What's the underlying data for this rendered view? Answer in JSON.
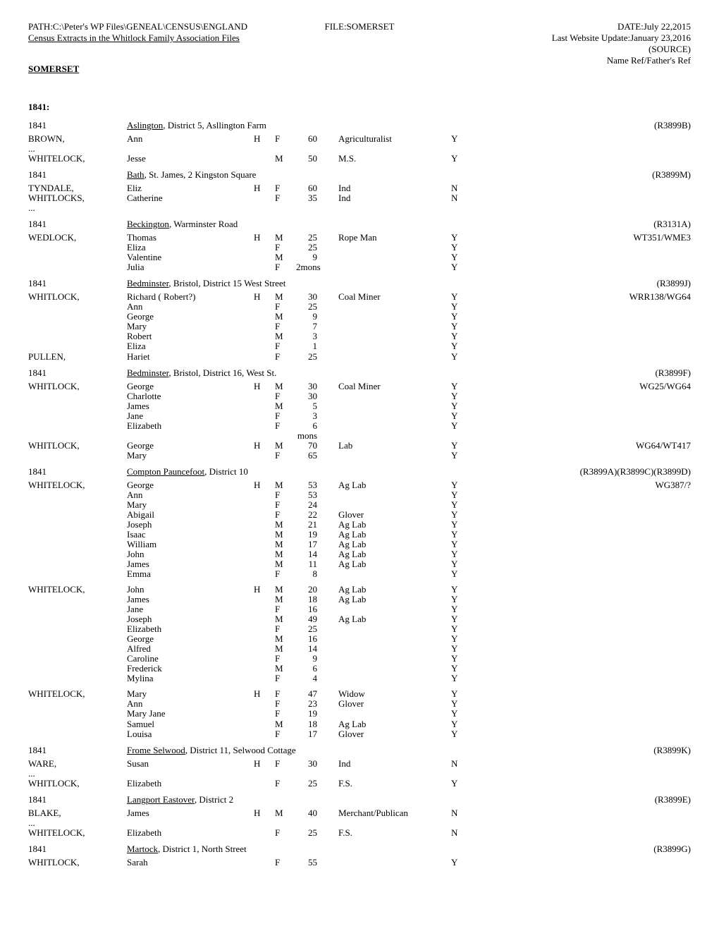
{
  "header": {
    "path": "PATH:C:\\Peter's WP Files\\GENEAL\\CENSUS\\ENGLAND",
    "file": "FILE:SOMERSET",
    "date": "DATE:July 22,2015",
    "update": "Last Website Update:January 23,2016",
    "subtitle": "Census Extracts in the Whitlock Family Association Files",
    "source": "(SOURCE)",
    "sourceRef": "Name Ref/Father's Ref",
    "county": "SOMERSET"
  },
  "yearHeader": "1841:",
  "entries": [
    {
      "type": "loc",
      "year": "1841",
      "place": "Aslington",
      "rest": ", District 5, Asllington Farm",
      "src": "(R3899B)"
    },
    {
      "type": "p",
      "surname": "BROWN,",
      "name": "Ann",
      "h": "H",
      "sex": "F",
      "age": "60",
      "occ": "Agriculturalist",
      "born": "Y",
      "ref": ""
    },
    {
      "type": "ell"
    },
    {
      "type": "p",
      "surname": "WHITELOCK,",
      "name": "Jesse",
      "h": "",
      "sex": "M",
      "age": "50",
      "occ": "M.S.",
      "born": "Y",
      "ref": ""
    },
    {
      "type": "loc",
      "year": "1841",
      "place": "Bath",
      "rest": ", St. James, 2 Kingston Square",
      "src": "(R3899M)"
    },
    {
      "type": "p",
      "surname": "TYNDALE,",
      "name": "Eliz",
      "h": "H",
      "sex": "F",
      "age": "60",
      "occ": "Ind",
      "born": "N",
      "ref": ""
    },
    {
      "type": "p",
      "surname": "WHITLOCKS,",
      "name": "Catherine",
      "h": "",
      "sex": "F",
      "age": "35",
      "occ": "Ind",
      "born": "N",
      "ref": ""
    },
    {
      "type": "ell"
    },
    {
      "type": "loc",
      "year": "1841",
      "place": "Beckington",
      "rest": ", Warminster Road",
      "src": "(R3131A)"
    },
    {
      "type": "p",
      "surname": "WEDLOCK,",
      "name": "Thomas",
      "h": "H",
      "sex": "M",
      "age": "25",
      "occ": "Rope Man",
      "born": "Y",
      "ref": "WT351/WME3"
    },
    {
      "type": "p",
      "surname": "",
      "name": "Eliza",
      "h": "",
      "sex": "F",
      "age": "25",
      "occ": "",
      "born": "Y",
      "ref": ""
    },
    {
      "type": "p",
      "surname": "",
      "name": "Valentine",
      "h": "",
      "sex": "M",
      "age": "9",
      "occ": "",
      "born": "Y",
      "ref": ""
    },
    {
      "type": "p",
      "surname": "",
      "name": "Julia",
      "h": "",
      "sex": "F",
      "age": "2mons",
      "occ": "",
      "born": "Y",
      "ref": ""
    },
    {
      "type": "loc",
      "year": "1841",
      "place": "Bedminster",
      "rest": ", Bristol, District 15 West Street",
      "src": "(R3899J)"
    },
    {
      "type": "p",
      "surname": "WHITLOCK,",
      "name": "Richard ( Robert?)",
      "h": "H",
      "sex": "M",
      "age": "30",
      "occ": "Coal Miner",
      "born": "Y",
      "ref": "WRR138/WG64"
    },
    {
      "type": "p",
      "surname": "",
      "name": "Ann",
      "h": "",
      "sex": "F",
      "age": "25",
      "occ": "",
      "born": "Y",
      "ref": ""
    },
    {
      "type": "p",
      "surname": "",
      "name": "George",
      "h": "",
      "sex": "M",
      "age": "9",
      "occ": "",
      "born": "Y",
      "ref": ""
    },
    {
      "type": "p",
      "surname": "",
      "name": "Mary",
      "h": "",
      "sex": "F",
      "age": "7",
      "occ": "",
      "born": "Y",
      "ref": ""
    },
    {
      "type": "p",
      "surname": "",
      "name": "Robert",
      "h": "",
      "sex": "M",
      "age": "3",
      "occ": "",
      "born": "Y",
      "ref": ""
    },
    {
      "type": "p",
      "surname": "",
      "name": "Eliza",
      "h": "",
      "sex": "F",
      "age": "1",
      "occ": "",
      "born": "Y",
      "ref": ""
    },
    {
      "type": "p",
      "surname": "PULLEN,",
      "name": "Hariet",
      "h": "",
      "sex": "F",
      "age": "25",
      "occ": "",
      "born": "Y",
      "ref": ""
    },
    {
      "type": "loc",
      "year": "1841",
      "place": "Bedminster",
      "rest": ", Bristol, District 16, West St.",
      "src": "(R3899F)"
    },
    {
      "type": "p",
      "surname": "WHITLOCK,",
      "name": "George",
      "h": "H",
      "sex": "M",
      "age": "30",
      "occ": "Coal Miner",
      "born": "Y",
      "ref": "WG25/WG64"
    },
    {
      "type": "p",
      "surname": "",
      "name": "Charlotte",
      "h": "",
      "sex": "F",
      "age": "30",
      "occ": "",
      "born": "Y",
      "ref": ""
    },
    {
      "type": "p",
      "surname": "",
      "name": "James",
      "h": "",
      "sex": "M",
      "age": "5",
      "occ": "",
      "born": "Y",
      "ref": ""
    },
    {
      "type": "p",
      "surname": "",
      "name": "Jane",
      "h": "",
      "sex": "F",
      "age": "3",
      "occ": "",
      "born": "Y",
      "ref": ""
    },
    {
      "type": "p",
      "surname": "",
      "name": "Elizabeth",
      "h": "",
      "sex": "F",
      "age": "6 mons",
      "occ": "",
      "born": "Y",
      "ref": ""
    },
    {
      "type": "p",
      "surname": "WHITLOCK,",
      "name": "George",
      "h": "H",
      "sex": "M",
      "age": "70",
      "occ": "Lab",
      "born": "Y",
      "ref": "WG64/WT417"
    },
    {
      "type": "p",
      "surname": "",
      "name": "Mary",
      "h": "",
      "sex": "F",
      "age": "65",
      "occ": "",
      "born": "Y",
      "ref": ""
    },
    {
      "type": "loc",
      "year": "1841",
      "place": "Compton Pauncefoot",
      "rest": ", District 10",
      "src": "(R3899A)(R3899C)(R3899D)"
    },
    {
      "type": "p",
      "surname": "WHITELOCK,",
      "name": "George",
      "h": "H",
      "sex": "M",
      "age": "53",
      "occ": "Ag Lab",
      "born": "Y",
      "ref": "WG387/?"
    },
    {
      "type": "p",
      "surname": "",
      "name": "Ann",
      "h": "",
      "sex": "F",
      "age": "53",
      "occ": "",
      "born": "Y",
      "ref": ""
    },
    {
      "type": "p",
      "surname": "",
      "name": "Mary",
      "h": "",
      "sex": "F",
      "age": "24",
      "occ": "",
      "born": "Y",
      "ref": ""
    },
    {
      "type": "p",
      "surname": "",
      "name": "Abigail",
      "h": "",
      "sex": "F",
      "age": "22",
      "occ": "Glover",
      "born": "Y",
      "ref": ""
    },
    {
      "type": "p",
      "surname": "",
      "name": "Joseph",
      "h": "",
      "sex": "M",
      "age": "21",
      "occ": "Ag Lab",
      "born": "Y",
      "ref": ""
    },
    {
      "type": "p",
      "surname": "",
      "name": "Isaac",
      "h": "",
      "sex": "M",
      "age": "19",
      "occ": "Ag Lab",
      "born": "Y",
      "ref": ""
    },
    {
      "type": "p",
      "surname": "",
      "name": "William",
      "h": "",
      "sex": "M",
      "age": "17",
      "occ": "Ag Lab",
      "born": "Y",
      "ref": ""
    },
    {
      "type": "p",
      "surname": "",
      "name": "John",
      "h": "",
      "sex": "M",
      "age": "14",
      "occ": "Ag Lab",
      "born": "Y",
      "ref": ""
    },
    {
      "type": "p",
      "surname": "",
      "name": "James",
      "h": "",
      "sex": "M",
      "age": "11",
      "occ": "Ag Lab",
      "born": "Y",
      "ref": ""
    },
    {
      "type": "p",
      "surname": "",
      "name": "Emma",
      "h": "",
      "sex": "F",
      "age": "8",
      "occ": "",
      "born": "Y",
      "ref": ""
    },
    {
      "type": "gap"
    },
    {
      "type": "p",
      "surname": "WHITELOCK,",
      "name": "John",
      "h": "H",
      "sex": "M",
      "age": "20",
      "occ": "Ag Lab",
      "born": "Y",
      "ref": ""
    },
    {
      "type": "p",
      "surname": "",
      "name": "James",
      "h": "",
      "sex": "M",
      "age": "18",
      "occ": "Ag Lab",
      "born": "Y",
      "ref": ""
    },
    {
      "type": "p",
      "surname": "",
      "name": "Jane",
      "h": "",
      "sex": "F",
      "age": "16",
      "occ": "",
      "born": "Y",
      "ref": ""
    },
    {
      "type": "p",
      "surname": "",
      "name": "Joseph",
      "h": "",
      "sex": "M",
      "age": "49",
      "occ": "Ag Lab",
      "born": "Y",
      "ref": ""
    },
    {
      "type": "p",
      "surname": "",
      "name": "Elizabeth",
      "h": "",
      "sex": "F",
      "age": "25",
      "occ": "",
      "born": "Y",
      "ref": ""
    },
    {
      "type": "p",
      "surname": "",
      "name": "George",
      "h": "",
      "sex": "M",
      "age": "16",
      "occ": "",
      "born": "Y",
      "ref": ""
    },
    {
      "type": "p",
      "surname": "",
      "name": "Alfred",
      "h": "",
      "sex": "M",
      "age": "14",
      "occ": "",
      "born": "Y",
      "ref": ""
    },
    {
      "type": "p",
      "surname": "",
      "name": "Caroline",
      "h": "",
      "sex": "F",
      "age": "9",
      "occ": "",
      "born": "Y",
      "ref": ""
    },
    {
      "type": "p",
      "surname": "",
      "name": "Frederick",
      "h": "",
      "sex": "M",
      "age": "6",
      "occ": "",
      "born": "Y",
      "ref": ""
    },
    {
      "type": "p",
      "surname": "",
      "name": "Mylina",
      "h": "",
      "sex": "F",
      "age": "4",
      "occ": "",
      "born": "Y",
      "ref": ""
    },
    {
      "type": "gap"
    },
    {
      "type": "p",
      "surname": "WHITELOCK,",
      "name": "Mary",
      "h": "H",
      "sex": "F",
      "age": "47",
      "occ": "Widow",
      "born": "Y",
      "ref": ""
    },
    {
      "type": "p",
      "surname": "",
      "name": "Ann",
      "h": "",
      "sex": "F",
      "age": "23",
      "occ": "Glover",
      "born": "Y",
      "ref": ""
    },
    {
      "type": "p",
      "surname": "",
      "name": "Mary Jane",
      "h": "",
      "sex": "F",
      "age": "19",
      "occ": "",
      "born": "Y",
      "ref": ""
    },
    {
      "type": "p",
      "surname": "",
      "name": "Samuel",
      "h": "",
      "sex": "M",
      "age": "18",
      "occ": "Ag Lab",
      "born": "Y",
      "ref": ""
    },
    {
      "type": "p",
      "surname": "",
      "name": "Louisa",
      "h": "",
      "sex": "F",
      "age": "17",
      "occ": "Glover",
      "born": "Y",
      "ref": ""
    },
    {
      "type": "loc",
      "year": "1841",
      "place": "Frome Selwood",
      "rest": ", District 11, Selwood Cottage",
      "src": "(R3899K)"
    },
    {
      "type": "p",
      "surname": "WARE,",
      "name": "Susan",
      "h": "H",
      "sex": "F",
      "age": "30",
      "occ": "Ind",
      "born": "N",
      "ref": ""
    },
    {
      "type": "ell"
    },
    {
      "type": "p",
      "surname": "WHITLOCK,",
      "name": "Elizabeth",
      "h": "",
      "sex": "F",
      "age": "25",
      "occ": "F.S.",
      "born": "Y",
      "ref": ""
    },
    {
      "type": "loc",
      "year": "1841",
      "place": "Langport Eastover",
      "rest": ", District 2",
      "src": "(R3899E)"
    },
    {
      "type": "p",
      "surname": "BLAKE,",
      "name": "James",
      "h": "H",
      "sex": "M",
      "age": "40",
      "occ": "Merchant/Publican",
      "born": "N",
      "ref": ""
    },
    {
      "type": "ell"
    },
    {
      "type": "p",
      "surname": "WHITELOCK,",
      "name": "Elizabeth",
      "h": "",
      "sex": "F",
      "age": "25",
      "occ": "F.S.",
      "born": "N",
      "ref": ""
    },
    {
      "type": "loc",
      "year": "1841",
      "place": "Martock",
      "rest": ", District 1, North Street",
      "src": "(R3899G)"
    },
    {
      "type": "p",
      "surname": "WHITLOCK,",
      "name": "Sarah",
      "h": "",
      "sex": "F",
      "age": "55",
      "occ": "",
      "born": "Y",
      "ref": ""
    }
  ]
}
